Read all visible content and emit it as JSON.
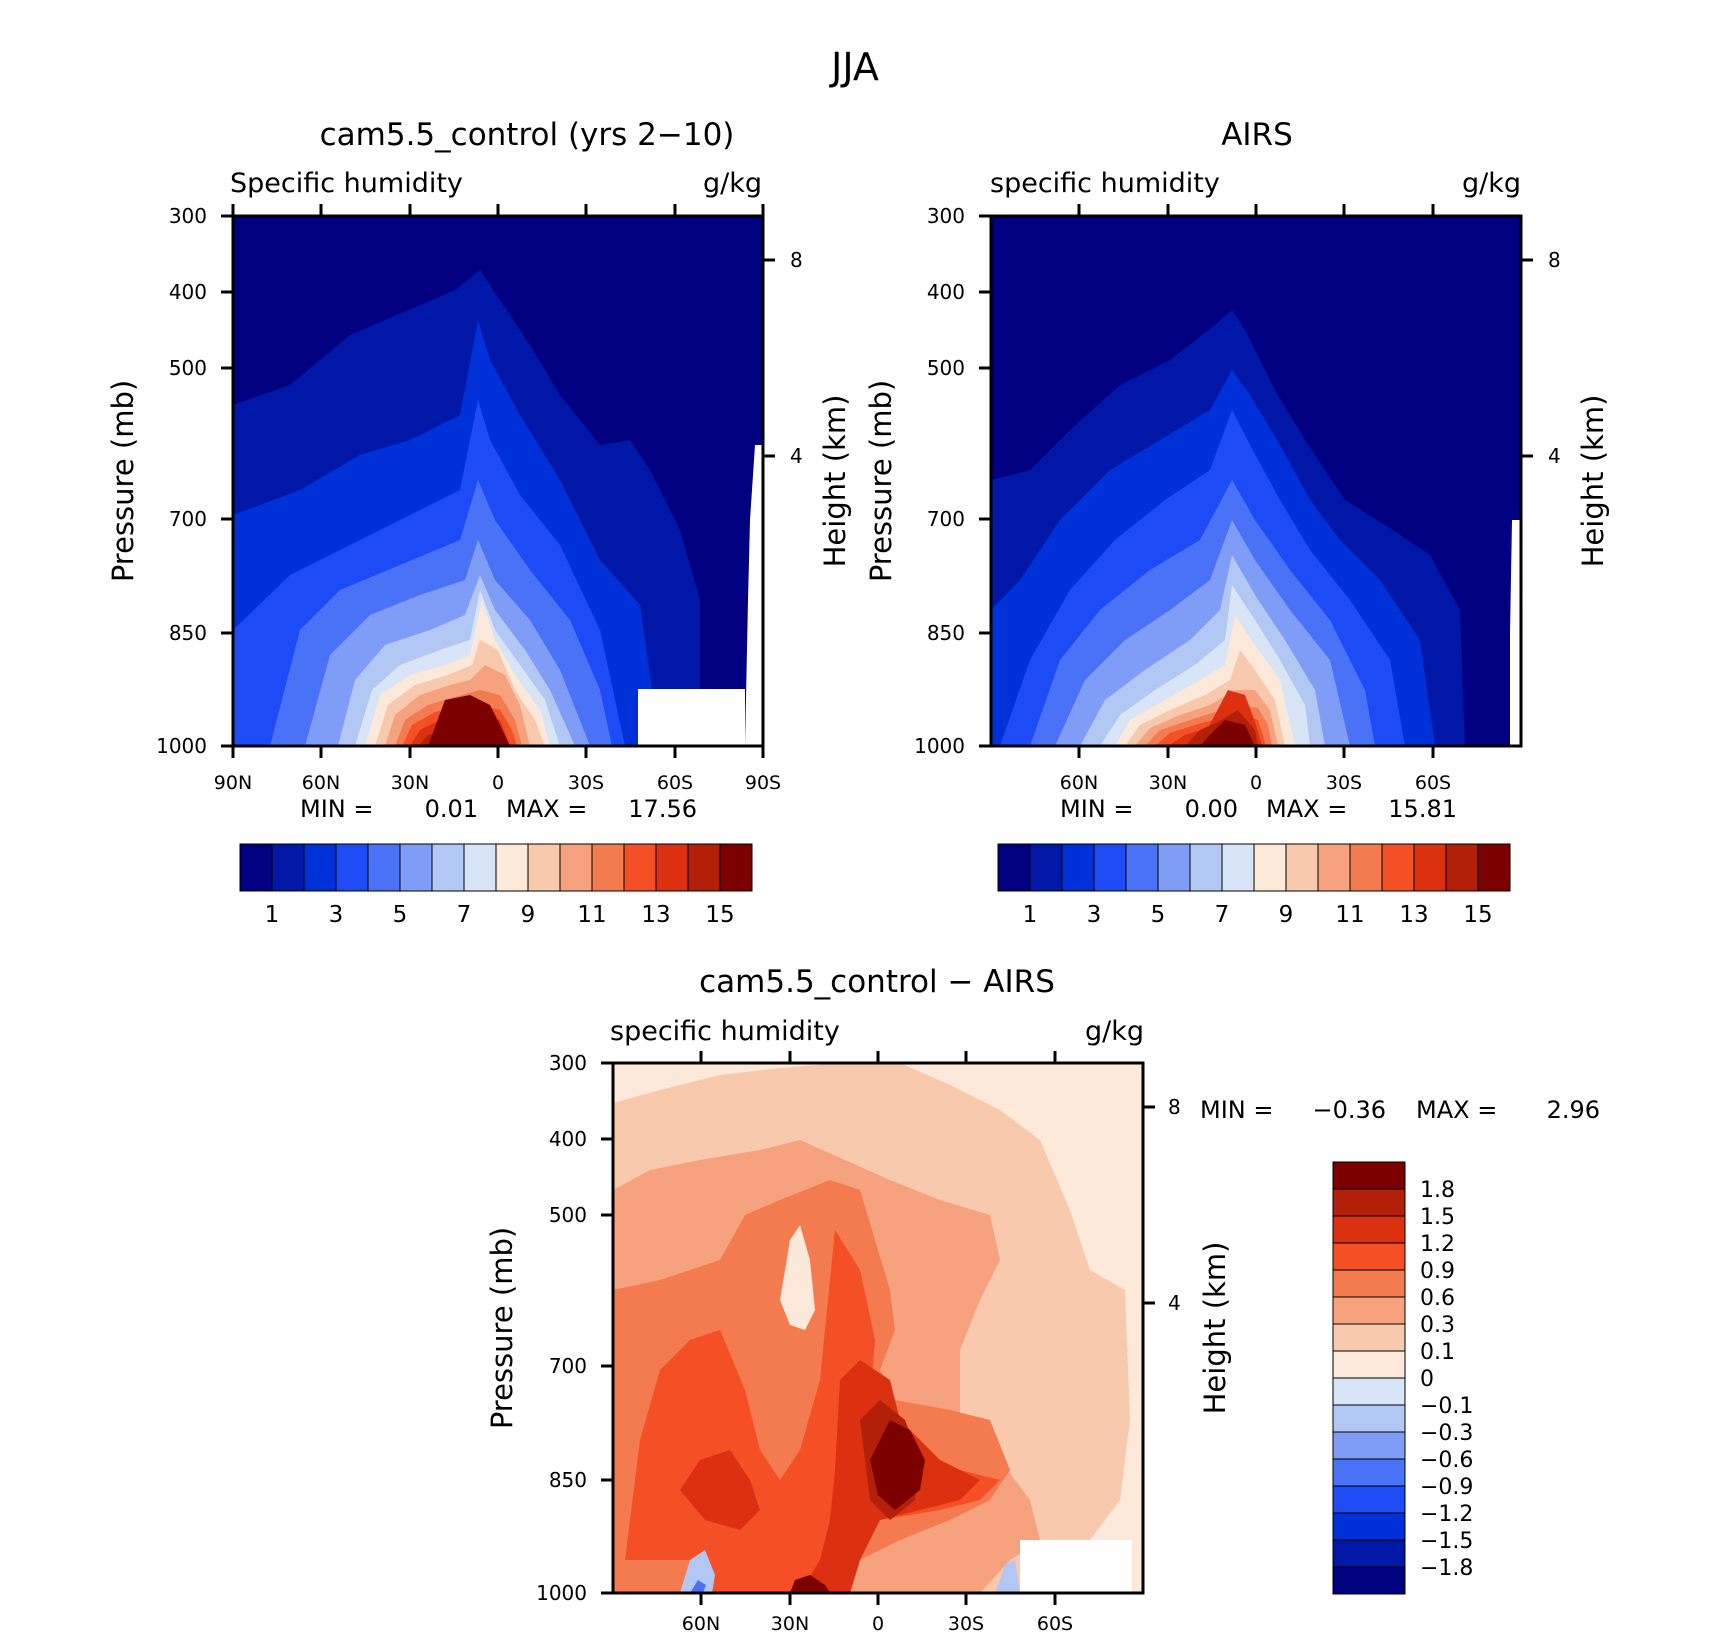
{
  "figure_title": "JJA",
  "colors": {
    "seq": [
      "#000080",
      "#0017a8",
      "#0031d8",
      "#1f4bf7",
      "#4a72f7",
      "#7f9cf7",
      "#b3c7f5",
      "#d8e5f6",
      "#fce9d9",
      "#f9c9ae",
      "#f6a27f",
      "#f47a4f",
      "#f44f25",
      "#db3110",
      "#b22009",
      "#7c0000"
    ],
    "diff": [
      "#000080",
      "#0017a8",
      "#0031d8",
      "#1f4bf7",
      "#4a72f7",
      "#7f9cf7",
      "#b3c7f5",
      "#d8e5f6",
      "#fce9d9",
      "#f9c9ae",
      "#f6a27f",
      "#f47a4f",
      "#f44f25",
      "#db3110",
      "#b22009",
      "#7c0000"
    ]
  },
  "panels": {
    "model": {
      "title": "cam5.5_control (yrs 2−10)",
      "variable": "Specific humidity",
      "units": "g/kg",
      "ylabel": "Pressure (mb)",
      "ylabel_right": "Height (km)",
      "min_label": "MIN =",
      "min_value": "0.01",
      "max_label": "MAX =",
      "max_value": "17.56"
    },
    "obs": {
      "title": "AIRS",
      "variable": "specific humidity",
      "units": "g/kg",
      "ylabel": "Pressure (mb)",
      "ylabel_right": "Height (km)",
      "min_label": "MIN =",
      "min_value": "0.00",
      "max_label": "MAX =",
      "max_value": "15.81"
    },
    "diff": {
      "title": "cam5.5_control − AIRS",
      "variable": "specific humidity",
      "units": "g/kg",
      "ylabel": "Pressure (mb)",
      "ylabel_right": "Height (km)",
      "min_label": "MIN =",
      "min_value": "−0.36",
      "max_label": "MAX =",
      "max_value": "2.96"
    }
  },
  "chart_data": [
    {
      "type": "heatmap",
      "title": "cam5.5_control (yrs 2−10)",
      "subtitle": "Specific humidity",
      "units": "g/kg",
      "xlabel": "",
      "ylabel": "Pressure (mb)",
      "ylabel_right": "Height (km)",
      "x_ticks": [
        "90N",
        "60N",
        "30N",
        "0",
        "30S",
        "60S",
        "90S"
      ],
      "y_ticks": [
        "300",
        "400",
        "500",
        "700",
        "850",
        "1000"
      ],
      "y_ticks_right": [
        "8",
        "4"
      ],
      "xlim": [
        90,
        -90
      ],
      "ylim": [
        1000,
        300
      ],
      "y_scale": "log",
      "colorbar_labels": [
        "1",
        "3",
        "5",
        "7",
        "9",
        "11",
        "13",
        "15"
      ],
      "colorbar_levels": [
        1,
        2,
        3,
        4,
        5,
        6,
        7,
        8,
        9,
        10,
        11,
        12,
        13,
        14,
        15
      ],
      "min": 0.01,
      "max": 17.56,
      "grid": false
    },
    {
      "type": "heatmap",
      "title": "AIRS",
      "subtitle": "specific humidity",
      "units": "g/kg",
      "xlabel": "",
      "ylabel": "Pressure (mb)",
      "ylabel_right": "Height (km)",
      "x_ticks": [
        "60N",
        "30N",
        "0",
        "30S",
        "60S"
      ],
      "y_ticks": [
        "300",
        "400",
        "500",
        "700",
        "850",
        "1000"
      ],
      "y_ticks_right": [
        "8",
        "4"
      ],
      "xlim": [
        90,
        -90
      ],
      "ylim": [
        1000,
        300
      ],
      "y_scale": "log",
      "colorbar_labels": [
        "1",
        "3",
        "5",
        "7",
        "9",
        "11",
        "13",
        "15"
      ],
      "colorbar_levels": [
        1,
        2,
        3,
        4,
        5,
        6,
        7,
        8,
        9,
        10,
        11,
        12,
        13,
        14,
        15
      ],
      "min": 0.0,
      "max": 15.81,
      "grid": false
    },
    {
      "type": "heatmap",
      "title": "cam5.5_control − AIRS",
      "subtitle": "specific humidity",
      "units": "g/kg",
      "xlabel": "",
      "ylabel": "Pressure (mb)",
      "ylabel_right": "Height (km)",
      "x_ticks": [
        "60N",
        "30N",
        "0",
        "30S",
        "60S"
      ],
      "y_ticks": [
        "300",
        "400",
        "500",
        "700",
        "850",
        "1000"
      ],
      "y_ticks_right": [
        "8",
        "4"
      ],
      "xlim": [
        90,
        -90
      ],
      "ylim": [
        1000,
        300
      ],
      "y_scale": "log",
      "colorbar_labels": [
        "1.8",
        "1.5",
        "1.2",
        "0.9",
        "0.6",
        "0.3",
        "0.1",
        "0",
        "−0.1",
        "−0.3",
        "−0.6",
        "−0.9",
        "−1.2",
        "−1.5",
        "−1.8"
      ],
      "colorbar_levels": [
        1.8,
        1.5,
        1.2,
        0.9,
        0.6,
        0.3,
        0.1,
        0,
        -0.1,
        -0.3,
        -0.6,
        -0.9,
        -1.2,
        -1.5,
        -1.8
      ],
      "min": -0.36,
      "max": 2.96,
      "grid": false
    }
  ]
}
